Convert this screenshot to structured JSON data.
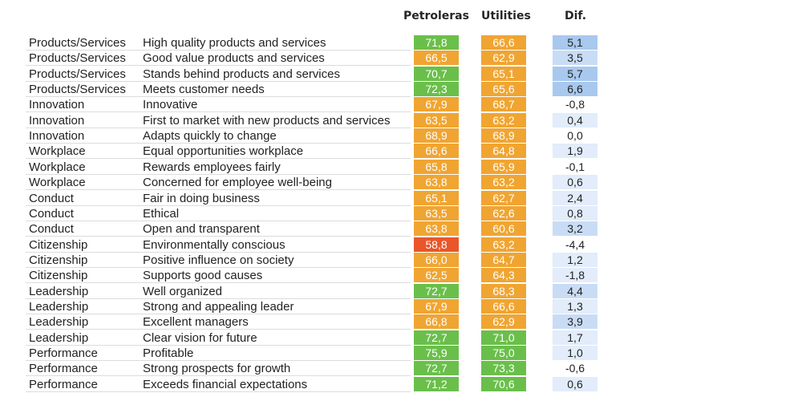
{
  "headers": {
    "petroleras": "Petroleras",
    "utilities": "Utilities",
    "dif": "Dif."
  },
  "colors": {
    "green": "#6abf4b",
    "orange": "#f0a532",
    "red": "#e8562a",
    "dif_strong": "#a8c8ee",
    "dif_mid": "#c9dcf5",
    "dif_light": "#e2ecfa"
  },
  "chart_data": {
    "type": "table",
    "columns": [
      "Petroleras",
      "Utilities",
      "Dif."
    ],
    "rows": [
      {
        "category": "Products/Services",
        "attribute": "High quality products and services",
        "petroleras": "71,8",
        "utilities": "66,6",
        "dif": "5,1"
      },
      {
        "category": "Products/Services",
        "attribute": "Good value products and services",
        "petroleras": "66,5",
        "utilities": "62,9",
        "dif": "3,5"
      },
      {
        "category": "Products/Services",
        "attribute": "Stands behind products and services",
        "petroleras": "70,7",
        "utilities": "65,1",
        "dif": "5,7"
      },
      {
        "category": "Products/Services",
        "attribute": "Meets customer needs",
        "petroleras": "72,3",
        "utilities": "65,6",
        "dif": "6,6"
      },
      {
        "category": "Innovation",
        "attribute": "Innovative",
        "petroleras": "67,9",
        "utilities": "68,7",
        "dif": "-0,8"
      },
      {
        "category": "Innovation",
        "attribute": "First to market with new products and services",
        "petroleras": "63,5",
        "utilities": "63,2",
        "dif": "0,4"
      },
      {
        "category": "Innovation",
        "attribute": "Adapts quickly to change",
        "petroleras": "68,9",
        "utilities": "68,9",
        "dif": "0,0"
      },
      {
        "category": "Workplace",
        "attribute": "Equal opportunities workplace",
        "petroleras": "66,6",
        "utilities": "64,8",
        "dif": "1,9"
      },
      {
        "category": "Workplace",
        "attribute": "Rewards employees fairly",
        "petroleras": "65,8",
        "utilities": "65,9",
        "dif": "-0,1"
      },
      {
        "category": "Workplace",
        "attribute": "Concerned for employee well-being",
        "petroleras": "63,8",
        "utilities": "63,2",
        "dif": "0,6"
      },
      {
        "category": "Conduct",
        "attribute": "Fair in doing business",
        "petroleras": "65,1",
        "utilities": "62,7",
        "dif": "2,4"
      },
      {
        "category": "Conduct",
        "attribute": "Ethical",
        "petroleras": "63,5",
        "utilities": "62,6",
        "dif": "0,8"
      },
      {
        "category": "Conduct",
        "attribute": "Open and transparent",
        "petroleras": "63,8",
        "utilities": "60,6",
        "dif": "3,2"
      },
      {
        "category": "Citizenship",
        "attribute": "Environmentally conscious",
        "petroleras": "58,8",
        "utilities": "63,2",
        "dif": "-4,4"
      },
      {
        "category": "Citizenship",
        "attribute": "Positive influence on society",
        "petroleras": "66,0",
        "utilities": "64,7",
        "dif": "1,2"
      },
      {
        "category": "Citizenship",
        "attribute": "Supports good causes",
        "petroleras": "62,5",
        "utilities": "64,3",
        "dif": "-1,8"
      },
      {
        "category": "Leadership",
        "attribute": "Well organized",
        "petroleras": "72,7",
        "utilities": "68,3",
        "dif": "4,4"
      },
      {
        "category": "Leadership",
        "attribute": "Strong and appealing leader",
        "petroleras": "67,9",
        "utilities": "66,6",
        "dif": "1,3"
      },
      {
        "category": "Leadership",
        "attribute": "Excellent managers",
        "petroleras": "66,8",
        "utilities": "62,9",
        "dif": "3,9"
      },
      {
        "category": "Leadership",
        "attribute": "Clear vision for future",
        "petroleras": "72,7",
        "utilities": "71,0",
        "dif": "1,7"
      },
      {
        "category": "Performance",
        "attribute": "Profitable",
        "petroleras": "75,9",
        "utilities": "75,0",
        "dif": "1,0"
      },
      {
        "category": "Performance",
        "attribute": "Strong prospects for growth",
        "petroleras": "72,7",
        "utilities": "73,3",
        "dif": "-0,6"
      },
      {
        "category": "Performance",
        "attribute": "Exceeds financial expectations",
        "petroleras": "71,2",
        "utilities": "70,6",
        "dif": "0,6"
      }
    ]
  }
}
